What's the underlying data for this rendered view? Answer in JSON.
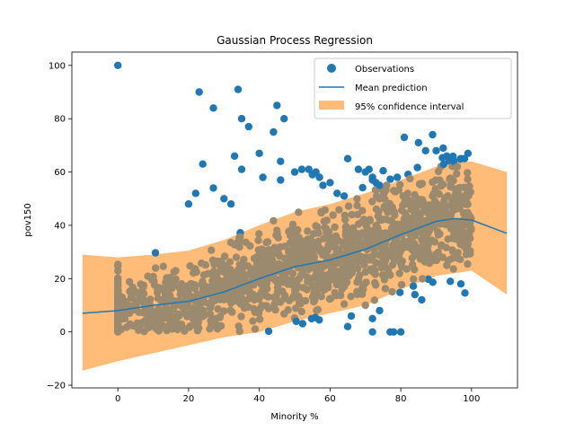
{
  "chart_data": {
    "type": "scatter",
    "title": "Gaussian Process Regression",
    "xlabel": "Minority %",
    "ylabel": "pov150",
    "xlim": [
      -13,
      113
    ],
    "ylim": [
      -21,
      105
    ],
    "xticks": [
      0,
      20,
      40,
      60,
      80,
      100
    ],
    "yticks": [
      -20,
      0,
      20,
      40,
      60,
      80,
      100
    ],
    "grid": false,
    "legend_position": "top-right",
    "colors": {
      "observations": "#1f77b4",
      "mean": "#1f77b4",
      "confidence": "#ffbb78",
      "overlap": "#9c8a6e"
    },
    "legend": [
      "Observations",
      "Mean prediction",
      "95% confidence interval"
    ],
    "series": [
      {
        "name": "Observations",
        "kind": "scatter",
        "note_dense_cloud": "dense cloud of several thousand points; representative outliers listed",
        "x": [
          0,
          23,
          34,
          27,
          35,
          45,
          37,
          44,
          47,
          40,
          41,
          33,
          35,
          46,
          46,
          50,
          52,
          54,
          56,
          24,
          27,
          20,
          22,
          30,
          32,
          65,
          68,
          70,
          72,
          74,
          74,
          79,
          81,
          85,
          87,
          89,
          90,
          92,
          93,
          95,
          96,
          97,
          98,
          99,
          71,
          72,
          73,
          76,
          78,
          60,
          62,
          64,
          55,
          57,
          58,
          70,
          72,
          74,
          78,
          84,
          93,
          94,
          97,
          99,
          0,
          2,
          5,
          8,
          10,
          65,
          66,
          72,
          77,
          80
        ],
        "y": [
          100,
          90,
          91,
          84,
          80,
          85,
          77,
          75,
          80,
          67,
          58,
          66,
          61,
          64,
          57,
          60,
          61,
          61,
          60,
          63,
          54,
          48,
          52,
          50,
          48,
          65,
          61,
          60,
          57,
          55,
          50,
          58,
          73,
          71,
          68,
          74,
          68,
          69,
          66,
          64,
          62,
          65,
          65,
          67,
          61,
          58,
          56,
          55,
          53,
          56,
          52,
          51,
          59,
          58,
          55,
          10,
          5,
          8,
          0,
          14,
          25,
          19,
          18,
          30,
          0,
          5,
          2,
          8,
          3,
          2,
          6,
          0,
          0,
          0
        ]
      },
      {
        "name": "Mean prediction",
        "kind": "line",
        "x": [
          -10,
          0,
          10,
          20,
          30,
          40,
          50,
          60,
          70,
          80,
          90,
          95,
          100,
          110
        ],
        "y": [
          7,
          8,
          10,
          11.5,
          15,
          20,
          24.5,
          27,
          31,
          36.5,
          41.5,
          42.5,
          42,
          37
        ]
      },
      {
        "name": "95% confidence interval",
        "kind": "band",
        "x": [
          -10,
          0,
          10,
          20,
          30,
          40,
          50,
          60,
          70,
          80,
          90,
          95,
          100,
          110
        ],
        "upper": [
          29,
          28,
          29,
          30.5,
          34.5,
          40,
          45,
          48,
          52,
          57,
          62,
          63.5,
          64,
          60
        ],
        "lower": [
          -14.5,
          -11,
          -8,
          -5,
          -2,
          0,
          4,
          7,
          10,
          16,
          21,
          22,
          23,
          14
        ]
      }
    ]
  }
}
